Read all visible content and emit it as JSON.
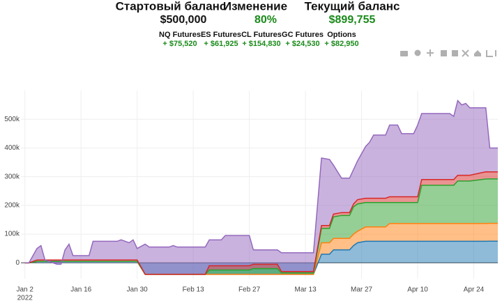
{
  "header": {
    "start_label": "Стартовый баланс",
    "start_value": "$500,000",
    "change_label": "Изменение",
    "change_value": "80%",
    "current_label": "Текущий баланс",
    "current_value": "$899,755",
    "amounts": [
      "+ $75,520",
      "+ $61,925",
      "+ $154,830",
      "+ $24,530",
      "+ $82,950"
    ]
  },
  "chart_data": {
    "type": "stacked_area",
    "x": [
      "2022-01-02",
      "2022-01-03",
      "2022-01-05",
      "2022-01-06",
      "2022-01-07",
      "2022-01-10",
      "2022-01-11",
      "2022-01-12",
      "2022-01-13",
      "2022-01-14",
      "2022-01-18",
      "2022-01-19",
      "2022-01-25",
      "2022-01-26",
      "2022-01-28",
      "2022-01-29",
      "2022-01-30",
      "2022-02-01",
      "2022-02-02",
      "2022-02-07",
      "2022-02-08",
      "2022-02-09",
      "2022-02-16",
      "2022-02-17",
      "2022-02-20",
      "2022-02-21",
      "2022-02-27",
      "2022-02-28",
      "2022-03-06",
      "2022-03-07",
      "2022-03-15",
      "2022-03-17",
      "2022-03-19",
      "2022-03-20",
      "2022-03-22",
      "2022-03-24",
      "2022-03-25",
      "2022-03-26",
      "2022-03-28",
      "2022-03-29",
      "2022-03-30",
      "2022-04-02",
      "2022-04-03",
      "2022-04-05",
      "2022-04-06",
      "2022-04-09",
      "2022-04-10",
      "2022-04-11",
      "2022-04-18",
      "2022-04-19",
      "2022-04-20",
      "2022-04-21",
      "2022-04-22",
      "2022-04-23",
      "2022-04-27",
      "2022-04-28",
      "2022-04-30"
    ],
    "series": [
      {
        "name": "NQ Futures",
        "color": "#1f77b4",
        "values": [
          0,
          0,
          5000,
          5000,
          5000,
          5000,
          5000,
          5000,
          5000,
          5000,
          5000,
          5000,
          5000,
          5000,
          5000,
          5000,
          5000,
          -40000,
          -40000,
          -40000,
          -40000,
          -40000,
          -40000,
          -40000,
          -40000,
          -40000,
          -40000,
          -40000,
          -40000,
          -40000,
          -40000,
          30000,
          30000,
          45000,
          45000,
          45000,
          60000,
          70000,
          75000,
          75000,
          75000,
          75000,
          75000,
          75000,
          75000,
          75000,
          75000,
          75000,
          75000,
          75000,
          75000,
          75000,
          75000,
          75000,
          75000,
          75520,
          75520
        ]
      },
      {
        "name": "ES Futures",
        "color": "#ff7f0e",
        "values": [
          0,
          0,
          0,
          0,
          0,
          0,
          0,
          0,
          0,
          0,
          0,
          0,
          0,
          0,
          0,
          0,
          0,
          0,
          0,
          0,
          0,
          0,
          0,
          0,
          0,
          0,
          0,
          0,
          0,
          0,
          0,
          40000,
          40000,
          40000,
          40000,
          40000,
          40000,
          40000,
          50000,
          50000,
          50000,
          50000,
          62000,
          62000,
          62000,
          62000,
          62000,
          62000,
          62000,
          62000,
          62000,
          62000,
          62000,
          62000,
          62000,
          61925,
          61925
        ]
      },
      {
        "name": "CL Futures",
        "color": "#2ca02c",
        "values": [
          0,
          0,
          0,
          0,
          0,
          0,
          0,
          0,
          0,
          0,
          0,
          0,
          0,
          0,
          0,
          0,
          0,
          0,
          0,
          0,
          0,
          0,
          0,
          15000,
          15000,
          15000,
          15000,
          20000,
          20000,
          5000,
          5000,
          50000,
          50000,
          75000,
          80000,
          80000,
          95000,
          95000,
          85000,
          85000,
          85000,
          85000,
          73000,
          73000,
          73000,
          73000,
          73000,
          133000,
          133000,
          133000,
          148000,
          148000,
          148000,
          148000,
          155000,
          154830,
          154830
        ]
      },
      {
        "name": "GC Futures",
        "color": "#d62728",
        "values": [
          0,
          0,
          5000,
          5000,
          5000,
          5000,
          5000,
          5000,
          5000,
          5000,
          5000,
          5000,
          5000,
          5000,
          5000,
          5000,
          5000,
          0,
          0,
          0,
          0,
          0,
          0,
          15000,
          15000,
          15000,
          15000,
          15000,
          15000,
          5000,
          5000,
          10000,
          10000,
          10000,
          10000,
          10000,
          10000,
          15000,
          15000,
          15000,
          15000,
          15000,
          20000,
          20000,
          20000,
          20000,
          20000,
          20000,
          20000,
          20000,
          20000,
          20000,
          20000,
          20000,
          25000,
          24530,
          24530
        ]
      },
      {
        "name": "Options",
        "color": "#9467bd",
        "values": [
          0,
          0,
          40000,
          50000,
          0,
          -15000,
          -15000,
          35000,
          55000,
          15000,
          15000,
          65000,
          65000,
          70000,
          60000,
          70000,
          40000,
          105000,
          95000,
          95000,
          100000,
          95000,
          95000,
          90000,
          90000,
          105000,
          105000,
          50000,
          50000,
          65000,
          65000,
          235000,
          230000,
          170000,
          120000,
          120000,
          120000,
          135000,
          180000,
          195000,
          220000,
          220000,
          250000,
          250000,
          220000,
          220000,
          250000,
          230000,
          230000,
          220000,
          260000,
          245000,
          250000,
          235000,
          223000,
          82950,
          82950
        ]
      }
    ],
    "xlim": [
      "2022-01-01",
      "2022-04-30"
    ],
    "xticks": [
      {
        "value": "2022-01-02",
        "label": "Jan 2"
      },
      {
        "value": "2022-01-16",
        "label": "Jan 16"
      },
      {
        "value": "2022-01-30",
        "label": "Jan 30"
      },
      {
        "value": "2022-02-13",
        "label": "Feb 13"
      },
      {
        "value": "2022-02-27",
        "label": "Feb 27"
      },
      {
        "value": "2022-03-13",
        "label": "Mar 13"
      },
      {
        "value": "2022-03-27",
        "label": "Mar 27"
      },
      {
        "value": "2022-04-10",
        "label": "Apr 10"
      },
      {
        "value": "2022-04-24",
        "label": "Apr 24"
      }
    ],
    "x_year_label": "2022",
    "ylim": [
      -55000,
      600000
    ],
    "yticks": [
      0,
      {
        "value": 100000,
        "label": "100k"
      },
      {
        "value": 200000,
        "label": "200k"
      },
      {
        "value": 300000,
        "label": "300k"
      },
      {
        "value": 400000,
        "label": "400k"
      },
      {
        "value": 500000,
        "label": "500k"
      }
    ],
    "grid": true
  }
}
